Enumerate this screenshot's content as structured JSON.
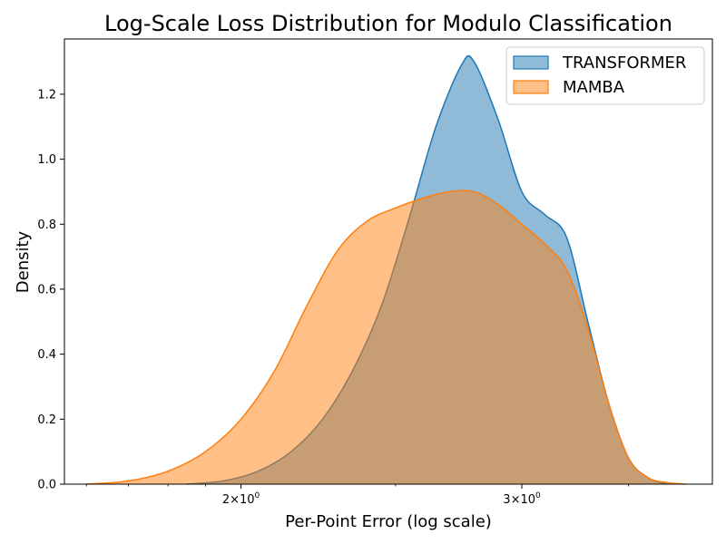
{
  "chart_data": {
    "type": "area",
    "title": "Log-Scale Loss Distribution for Modulo Classification",
    "xlabel": "Per-Point Error (log scale)",
    "ylabel": "Density",
    "xscale": "log",
    "xlim": [
      1.55,
      3.95
    ],
    "ylim": [
      0,
      1.37
    ],
    "x_ticks": [
      {
        "value": 2,
        "base": "2",
        "mult": "×",
        "ten": "10",
        "exp": "0"
      },
      {
        "value": 3,
        "base": "3",
        "mult": "×",
        "ten": "10",
        "exp": "0"
      }
    ],
    "y_ticks": [
      "0.0",
      "0.2",
      "0.4",
      "0.6",
      "0.8",
      "1.0",
      "1.2"
    ],
    "grid": false,
    "legend_position": "top-right",
    "series": [
      {
        "name": "TRANSFORMER",
        "color": "#1f77b4",
        "x": [
          1.85,
          1.95,
          2.05,
          2.15,
          2.25,
          2.35,
          2.45,
          2.55,
          2.65,
          2.75,
          2.8,
          2.9,
          3.0,
          3.1,
          3.2,
          3.3,
          3.4,
          3.5,
          3.6,
          3.7
        ],
        "y": [
          0.0,
          0.01,
          0.04,
          0.1,
          0.2,
          0.35,
          0.55,
          0.82,
          1.1,
          1.29,
          1.3,
          1.12,
          0.9,
          0.83,
          0.76,
          0.5,
          0.25,
          0.08,
          0.02,
          0.0
        ]
      },
      {
        "name": "MAMBA",
        "color": "#ff7f0e",
        "x": [
          1.6,
          1.7,
          1.8,
          1.9,
          2.0,
          2.1,
          2.2,
          2.3,
          2.4,
          2.5,
          2.6,
          2.7,
          2.8,
          2.9,
          3.0,
          3.1,
          3.2,
          3.3,
          3.4,
          3.5,
          3.6,
          3.7,
          3.8
        ],
        "y": [
          0.0,
          0.01,
          0.04,
          0.1,
          0.2,
          0.35,
          0.55,
          0.72,
          0.81,
          0.85,
          0.88,
          0.9,
          0.9,
          0.86,
          0.8,
          0.74,
          0.66,
          0.48,
          0.25,
          0.08,
          0.02,
          0.005,
          0.0
        ]
      }
    ]
  }
}
